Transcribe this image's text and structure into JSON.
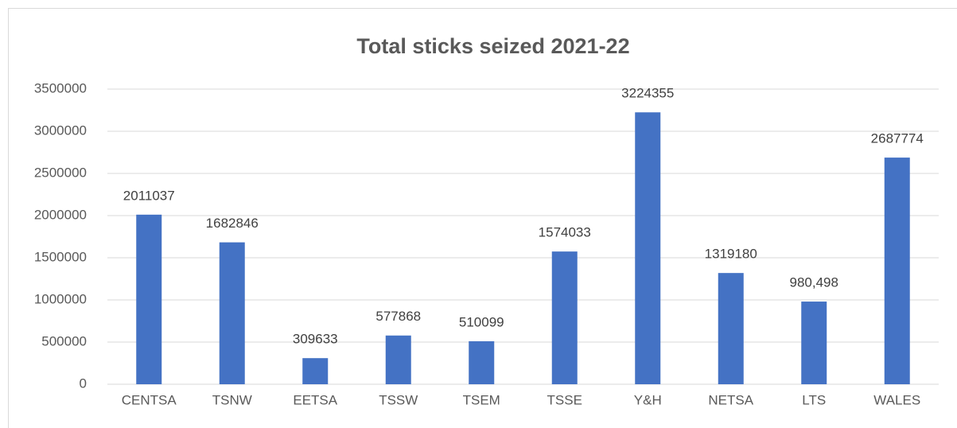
{
  "chart_data": {
    "type": "bar",
    "title": "Total sticks seized 2021-22",
    "categories": [
      "CENTSA",
      "TSNW",
      "EETSA",
      "TSSW",
      "TSEM",
      "TSSE",
      "Y&H",
      "NETSA",
      "LTS",
      "WALES"
    ],
    "values": [
      2011037,
      1682846,
      309633,
      577868,
      510099,
      1574033,
      3224355,
      1319180,
      980498,
      2687774
    ],
    "value_labels": [
      "2011037",
      "1682846",
      "309633",
      "577868",
      "510099",
      "1574033",
      "3224355",
      "1319180",
      "980,498",
      "2687774"
    ],
    "color": "#4472c4",
    "ylim": [
      0,
      3500000
    ],
    "yticks": [
      0,
      500000,
      1000000,
      1500000,
      2000000,
      2500000,
      3000000,
      3500000
    ],
    "grid": true
  }
}
